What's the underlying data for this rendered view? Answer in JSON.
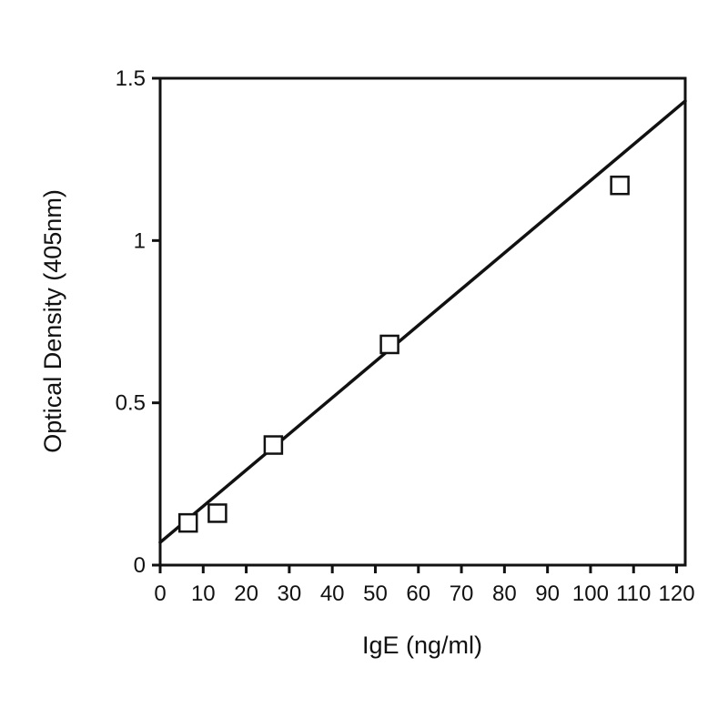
{
  "chart_data": {
    "type": "scatter",
    "title": "",
    "xlabel": "IgE (ng/ml)",
    "ylabel": "Optical Density (405nm)",
    "xlim": [
      0,
      122
    ],
    "ylim": [
      0,
      1.5
    ],
    "xticks": [
      0,
      10,
      20,
      30,
      40,
      50,
      60,
      70,
      80,
      90,
      100,
      110,
      120
    ],
    "yticks": [
      0,
      0.5,
      1,
      1.5
    ],
    "xtick_labels": [
      "0",
      "10",
      "20",
      "30",
      "40",
      "50",
      "60",
      "70",
      "80",
      "90",
      "100",
      "110",
      "120"
    ],
    "ytick_labels": [
      "0",
      "0.5",
      "1",
      "1.5"
    ],
    "grid": false,
    "legend": false,
    "series": [
      {
        "marker": "open-square",
        "x": [
          6.5,
          13.3,
          26.3,
          53.3,
          106.8
        ],
        "y": [
          0.13,
          0.16,
          0.37,
          0.68,
          1.17
        ]
      }
    ],
    "fit_line": {
      "x": [
        0,
        122
      ],
      "y": [
        0.07,
        1.43
      ]
    },
    "colors": {
      "axis": "#111111",
      "line": "#111111",
      "marker_fill": "#ffffff"
    }
  }
}
